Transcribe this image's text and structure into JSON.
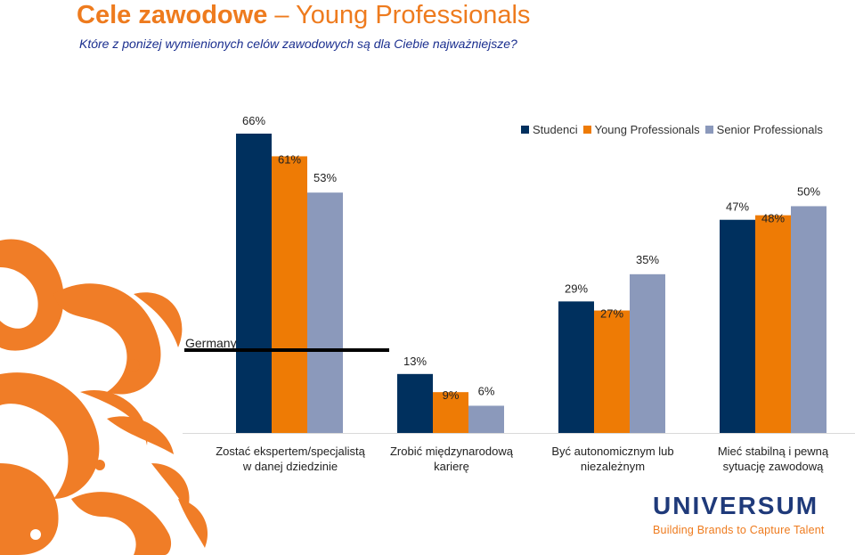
{
  "header": {
    "title_main": "Cele zawodowe",
    "title_separator": "–",
    "title_sub": "Young Professionals",
    "question": "Które z poniżej wymienionych celów zawodowych są dla Ciebie najważniejsze?"
  },
  "colors": {
    "studenci": "#00305e",
    "young_professionals": "#ee7b05",
    "senior_professionals": "#8b99bb",
    "ornament": "#f07d27",
    "title": "#ee7b1e",
    "question": "#1b2f8f"
  },
  "germany_label": "Germany",
  "chart_data": {
    "type": "bar",
    "categories": [
      "Zostać ekspertem/specjalistą\nw danej dziedzinie",
      "Zrobić międzynarodową\nkarierę",
      "Być autonomicznym lub\nniezależnym",
      "Mieć stabilną i pewną\nsytuację zawodową"
    ],
    "series": [
      {
        "name": "Studenci",
        "values": [
          66,
          13,
          29,
          47
        ],
        "labels": [
          "66%",
          "13%",
          "29%",
          "47%"
        ]
      },
      {
        "name": "Young Professionals",
        "values": [
          61,
          9,
          27,
          48
        ],
        "labels": [
          "61%",
          "9%",
          "27%",
          "48%"
        ]
      },
      {
        "name": "Senior Professionals",
        "values": [
          53,
          6,
          35,
          50
        ],
        "labels": [
          "53%",
          "6%",
          "35%",
          "50%"
        ]
      }
    ],
    "ylim": [
      0,
      70
    ],
    "legend": "top-right",
    "grid": false
  },
  "logo": {
    "word": "UNIVERSUM",
    "tagline": "Building Brands to Capture Talent"
  }
}
